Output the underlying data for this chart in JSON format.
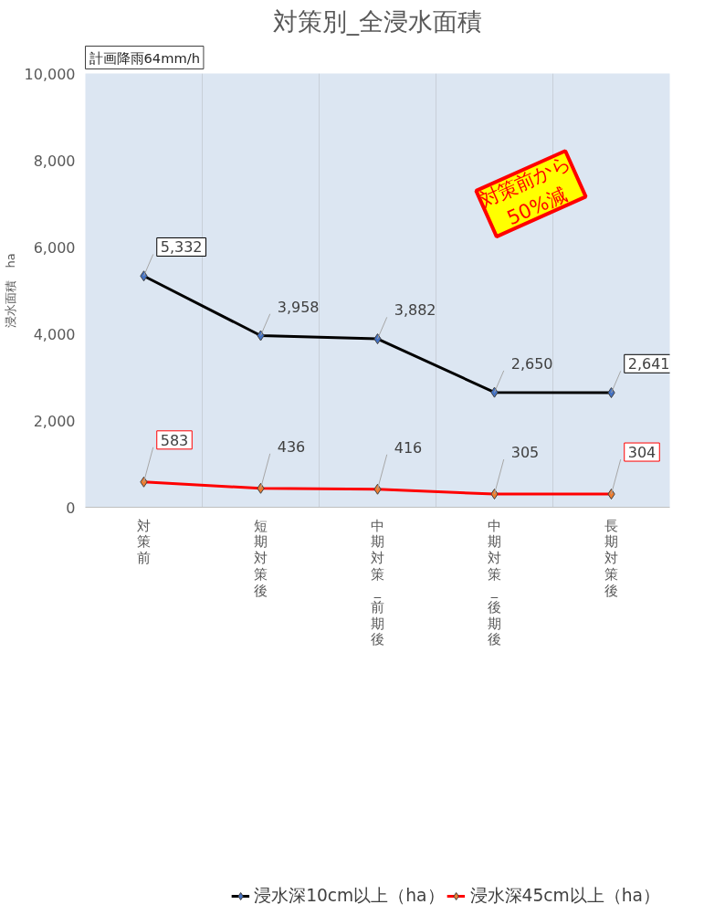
{
  "chart_data": {
    "type": "line",
    "title": "対策別_全浸水面積",
    "ylabel": "浸水面積　ha",
    "categories": [
      "対策前",
      "短期対策後",
      "中期対策_前期後",
      "中期対策_後期後",
      "長期対策後"
    ],
    "series": [
      {
        "name": "浸水深10cm以上（ha）",
        "color": "#000000",
        "values": [
          5332,
          3958,
          3882,
          2650,
          2641
        ],
        "value_labels": [
          "5,332",
          "3,958",
          "3,882",
          "2,650",
          "2,641"
        ]
      },
      {
        "name": "浸水深45cm以上（ha）",
        "color": "#ff0000",
        "values": [
          583,
          436,
          416,
          305,
          304
        ],
        "value_labels": [
          "583",
          "436",
          "416",
          "305",
          "304"
        ]
      }
    ],
    "ylim": [
      0,
      10000
    ],
    "yticks": [
      {
        "value": 0,
        "label": "0"
      },
      {
        "value": 2000,
        "label": "2,000"
      },
      {
        "value": 4000,
        "label": "4,000"
      },
      {
        "value": 6000,
        "label": "6,000"
      },
      {
        "value": 8000,
        "label": "8,000"
      },
      {
        "value": 10000,
        "label": "10,000"
      }
    ],
    "marker": "diamond",
    "grid": "x",
    "legend": "bottom",
    "annotations": [
      "計画降雨64mm/h",
      "対策前から\n50%減"
    ]
  }
}
